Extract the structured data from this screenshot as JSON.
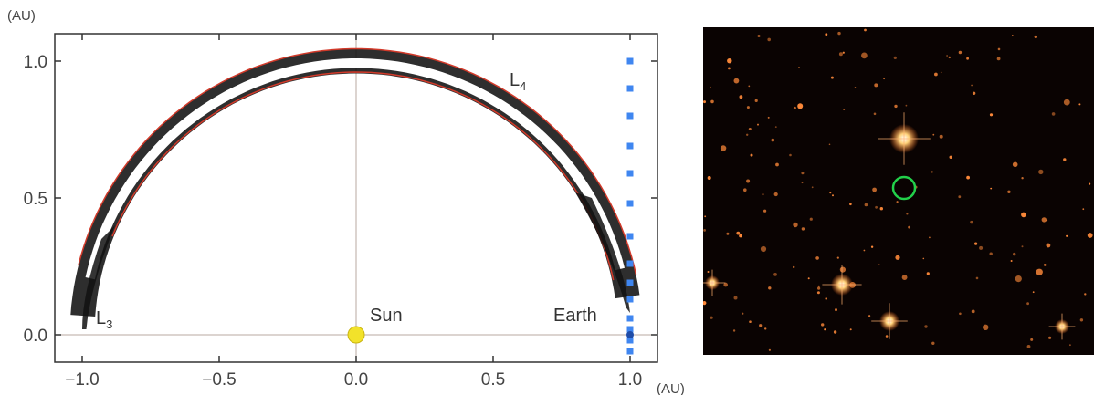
{
  "chart_data": {
    "type": "scatter",
    "x_ticks": [
      "−1.0",
      "−0.5",
      "0.0",
      "0.5",
      "1.0"
    ],
    "y_ticks": [
      "0.0",
      "0.5",
      "1.0"
    ],
    "x_unit": "(AU)",
    "y_unit": "(AU)",
    "xlim": [
      -1.1,
      1.1
    ],
    "ylim": [
      -0.1,
      1.1
    ],
    "grid_lines": {
      "vertical_x": 0.0,
      "horizontal_y": 0.0
    },
    "annotations": {
      "l3": {
        "main": "L",
        "sub": "3",
        "x": -0.95,
        "y": 0.04
      },
      "l4": {
        "main": "L",
        "sub": "4",
        "x": 0.56,
        "y": 0.91
      },
      "sun": "Sun",
      "earth": "Earth"
    },
    "sun": {
      "x": 0.0,
      "y": 0.0,
      "color": "#f2e22a"
    },
    "earth": {
      "x": 1.0,
      "y": 0.0
    },
    "observer_markers": {
      "x": 1.0,
      "y": [
        -0.06,
        -0.02,
        0.02,
        0.06,
        0.13,
        0.19,
        0.26,
        0.36,
        0.48,
        0.59,
        0.69,
        0.8,
        0.9,
        1.0
      ],
      "color": "#3f86f0"
    },
    "tadpole_orbit": {
      "color": "#111111",
      "outline_color": "#d23a2a",
      "outer_radius": 1.045,
      "inner_radius": 0.955,
      "start_deg": 8,
      "end_deg": 176
    }
  },
  "image_panel": {
    "background": "#0a0302",
    "star_color": "#ff8a3a",
    "marker_color": "#22d04a"
  }
}
